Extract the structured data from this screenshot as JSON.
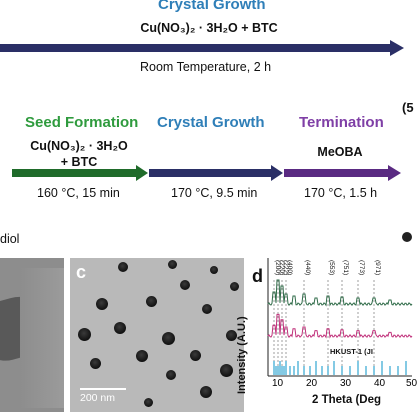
{
  "row1": {
    "title": "Crystal Growth",
    "formula": "Cu(NO₃)₂ · 3H₂O + BTC",
    "condition": "Room Temperature, 2 h",
    "color": "#2a2f66"
  },
  "row2": {
    "stages": [
      {
        "title": "Seed Formation",
        "formula_line1": "Cu(NO₃)₂ · 3H₂O",
        "formula_line2": "+ BTC",
        "condition": "160 °C, 15 min",
        "color": "#1f6b2a"
      },
      {
        "title": "Crystal Growth",
        "formula_line1": "",
        "formula_line2": "",
        "condition": "170 °C, 9.5 min",
        "color": "#2a2f66"
      },
      {
        "title": "Termination",
        "formula_line1": "MeOBA",
        "formula_line2": "",
        "condition": "170 °C, 1.5 h",
        "color": "#5a2a82"
      }
    ],
    "side_mark": "(5"
  },
  "lower": {
    "left_label": "diol",
    "panel_c": {
      "letter": "c",
      "scale": "200 nm"
    },
    "panel_d": {
      "letter": "d",
      "ylabel": "Intensity (A.U.)",
      "xlabel": "2 Theta (Deg",
      "xticks": [
        "10",
        "20",
        "30",
        "40",
        "50"
      ],
      "hkl": [
        "(200)",
        "(220)",
        "(222)",
        "(400)",
        "(440)",
        "(553)",
        "(751)",
        "(773)",
        "(971)"
      ],
      "ref_label": "HKUST-1 (JI"
    }
  }
}
